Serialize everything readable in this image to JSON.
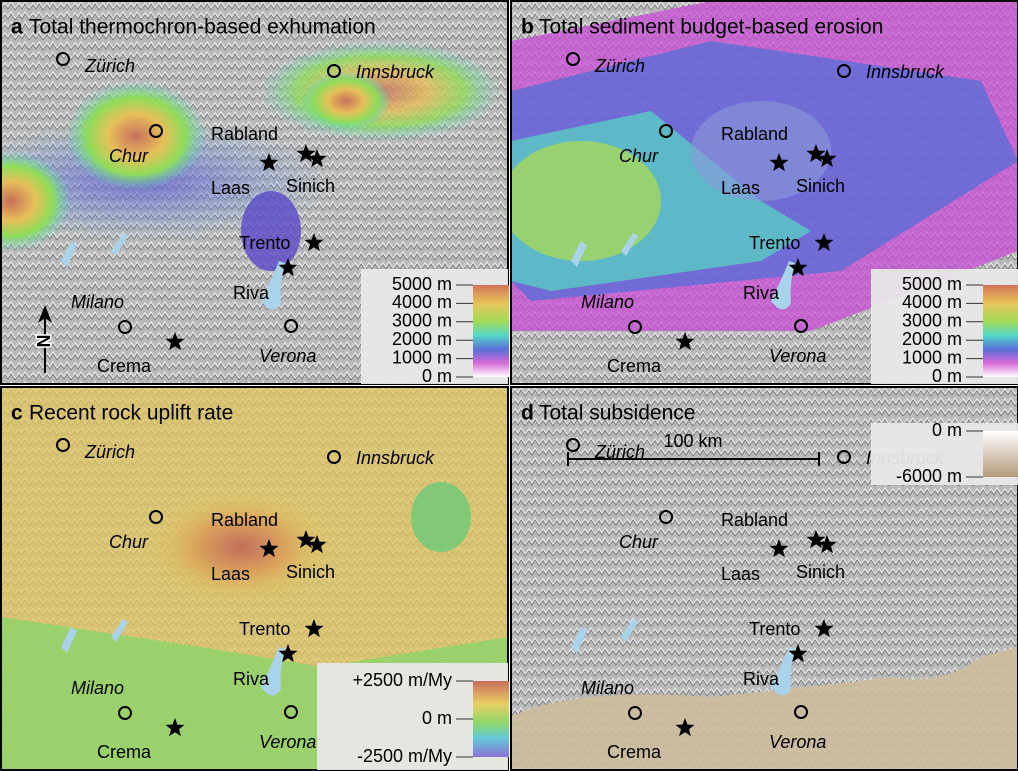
{
  "panels": [
    {
      "letter": "a",
      "title": "Total thermochron-based exhumation",
      "legend": [
        "5000 m",
        "4000 m",
        "3000 m",
        "2000 m",
        "1000 m",
        "0 m"
      ],
      "north": "N"
    },
    {
      "letter": "b",
      "title": "Total sediment budget-based erosion",
      "legend": [
        "5000 m",
        "4000 m",
        "3000 m",
        "2000 m",
        "1000 m",
        "0 m"
      ]
    },
    {
      "letter": "c",
      "title": "Recent rock uplift rate",
      "legend": [
        "+2500 m/My",
        "0 m",
        "-2500 m/My"
      ]
    },
    {
      "letter": "d",
      "title": "Total subsidence",
      "legend": [
        "0 m",
        "-6000 m"
      ],
      "scale_bar": "100 km"
    }
  ],
  "places": [
    {
      "label": "Zürich",
      "kind": "city"
    },
    {
      "label": "Innsbruck",
      "kind": "city"
    },
    {
      "label": "Chur",
      "kind": "city"
    },
    {
      "label": "Milano",
      "kind": "city"
    },
    {
      "label": "Verona",
      "kind": "city"
    },
    {
      "label": "Rabland",
      "kind": "site"
    },
    {
      "label": "Laas",
      "kind": "site"
    },
    {
      "label": "Sinich",
      "kind": "site"
    },
    {
      "label": "Trento",
      "kind": "site"
    },
    {
      "label": "Riva",
      "kind": "site"
    },
    {
      "label": "Crema",
      "kind": "site"
    }
  ]
}
